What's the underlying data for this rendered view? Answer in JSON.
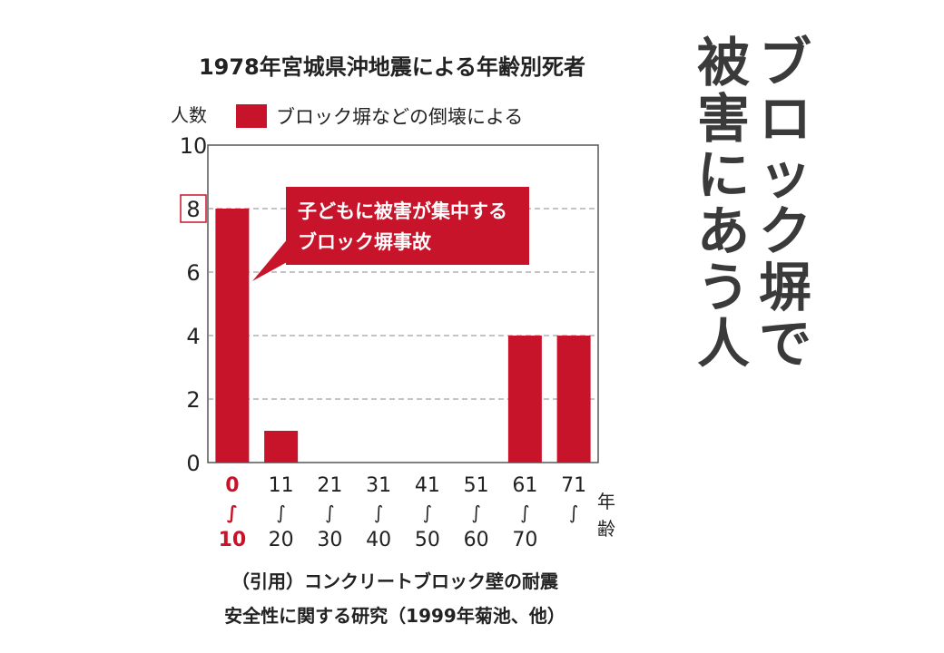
{
  "chart_data": {
    "type": "bar",
    "title": "1978年宮城県沖地震による年齢別死者",
    "ylabel": "人数",
    "xlabel": "年齢",
    "ylim": [
      0,
      10
    ],
    "yticks": [
      0,
      2,
      4,
      6,
      8,
      10
    ],
    "highlight_tick": 8,
    "categories": [
      {
        "top": "0",
        "bottom": "10"
      },
      {
        "top": "11",
        "bottom": "20"
      },
      {
        "top": "21",
        "bottom": "30"
      },
      {
        "top": "31",
        "bottom": "40"
      },
      {
        "top": "41",
        "bottom": "50"
      },
      {
        "top": "51",
        "bottom": "60"
      },
      {
        "top": "61",
        "bottom": "70"
      },
      {
        "top": "71",
        "bottom": ""
      }
    ],
    "range_mark": "∫",
    "series": [
      {
        "name": "ブロック塀などの倒壊による",
        "values": [
          8,
          1,
          0,
          0,
          0,
          0,
          4,
          4
        ]
      }
    ],
    "annotation": [
      "子どもに被害が集中する",
      "ブロック塀事故"
    ],
    "grid": true,
    "legend_position": "top",
    "colors": {
      "bar": "#c8142a",
      "highlight_label": "#c8142a",
      "annotation_bg": "#c8142a"
    }
  },
  "side_heading": {
    "right_column": [
      "ブ",
      "ロ",
      "ッ",
      "ク",
      "塀",
      "で"
    ],
    "left_column": [
      "被",
      "害",
      "に",
      "あ",
      "う",
      "人"
    ]
  },
  "source": [
    "（引用）コンクリートブロック壁の耐震",
    "安全性に関する研究（1999年菊池、他）"
  ]
}
